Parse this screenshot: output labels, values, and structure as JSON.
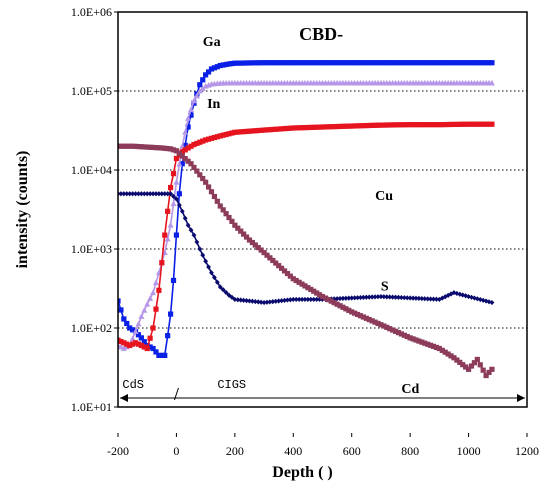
{
  "chart_data": {
    "type": "line",
    "title": "CBD-",
    "xlabel": "Depth (   )",
    "ylabel": "intensity (counts)",
    "xlim": [
      -200,
      1200
    ],
    "ylim": [
      10,
      1000000
    ],
    "yscale": "log",
    "x_ticks": [
      -200,
      0,
      200,
      400,
      600,
      800,
      1000,
      1200
    ],
    "x_tick_labels": [
      "-200",
      "0",
      "200",
      "400",
      "600",
      "800",
      "1000",
      "1200"
    ],
    "y_ticks": [
      10,
      100,
      1000,
      10000,
      100000,
      1000000
    ],
    "y_tick_labels": [
      "1.0E+01",
      "1.0E+02",
      "1.0E+03",
      "1.0E+04",
      "1.0E+05",
      "1.0E+06"
    ],
    "grid": "horizontal dotted",
    "series": [
      {
        "name": "Ga",
        "color": "#0a20e6",
        "marker": "square",
        "x": [
          -200,
          -180,
          -160,
          -140,
          -120,
          -100,
          -80,
          -60,
          -40,
          -30,
          -20,
          -10,
          0,
          10,
          20,
          40,
          60,
          80,
          100,
          120,
          150,
          180,
          200,
          300,
          400,
          500,
          600,
          700,
          800,
          900,
          1000,
          1080
        ],
        "y": [
          220,
          130,
          100,
          90,
          75,
          60,
          55,
          45,
          45,
          80,
          150,
          400,
          1500,
          5000,
          12000,
          35000,
          70000,
          120000,
          160000,
          190000,
          210000,
          220000,
          225000,
          228000,
          228000,
          228000,
          228000,
          228000,
          228000,
          228000,
          228000,
          228000
        ]
      },
      {
        "name": "In",
        "color": "#b596e8",
        "marker": "triangle",
        "x": [
          -200,
          -180,
          -160,
          -140,
          -120,
          -100,
          -80,
          -60,
          -40,
          -20,
          0,
          20,
          40,
          60,
          80,
          100,
          120,
          150,
          180,
          200,
          300,
          400,
          500,
          600,
          700,
          800,
          900,
          1000,
          1080
        ],
        "y": [
          60,
          55,
          60,
          90,
          140,
          200,
          280,
          500,
          900,
          2000,
          7000,
          20000,
          45000,
          75000,
          100000,
          115000,
          122000,
          125000,
          126000,
          126000,
          126000,
          126000,
          126000,
          126000,
          126000,
          126000,
          126000,
          126000,
          126000
        ]
      },
      {
        "name": "Cu",
        "color": "#e6141e",
        "marker": "square",
        "x": [
          -200,
          -180,
          -160,
          -140,
          -120,
          -100,
          -80,
          -60,
          -40,
          -30,
          -20,
          -10,
          0,
          20,
          40,
          60,
          100,
          150,
          200,
          300,
          400,
          500,
          600,
          700,
          800,
          900,
          1000,
          1080
        ],
        "y": [
          70,
          65,
          60,
          65,
          60,
          55,
          100,
          300,
          1500,
          3000,
          6000,
          9000,
          14000,
          17000,
          19000,
          21000,
          24000,
          27000,
          30000,
          32000,
          34000,
          35000,
          36000,
          37000,
          37500,
          37500,
          38000,
          38000
        ]
      },
      {
        "name": "S",
        "color": "#0a0a6e",
        "marker": "diamond",
        "x": [
          -200,
          -150,
          -100,
          -50,
          -20,
          0,
          20,
          40,
          60,
          80,
          100,
          120,
          150,
          180,
          200,
          250,
          300,
          400,
          500,
          600,
          700,
          800,
          900,
          950,
          1000,
          1080
        ],
        "y": [
          5000,
          5000,
          5000,
          5000,
          5000,
          4300,
          3000,
          2000,
          1500,
          1000,
          700,
          500,
          330,
          260,
          230,
          220,
          210,
          230,
          230,
          240,
          250,
          240,
          230,
          280,
          250,
          210
        ]
      },
      {
        "name": "Cd",
        "color": "#8c3c5a",
        "marker": "square",
        "x": [
          -200,
          -150,
          -100,
          -50,
          -20,
          0,
          20,
          50,
          100,
          150,
          200,
          250,
          300,
          400,
          500,
          600,
          700,
          800,
          900,
          950,
          1000,
          1030,
          1060,
          1080
        ],
        "y": [
          20000,
          20000,
          19500,
          19000,
          18500,
          17500,
          15000,
          12000,
          7000,
          3500,
          2000,
          1300,
          900,
          420,
          250,
          160,
          110,
          75,
          55,
          42,
          30,
          40,
          25,
          30
        ]
      }
    ],
    "region_labels": [
      "CdS",
      "CIGS"
    ]
  }
}
